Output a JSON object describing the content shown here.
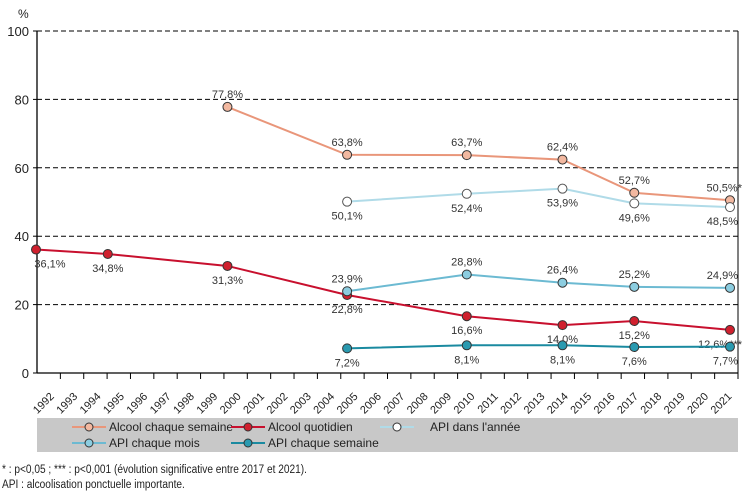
{
  "chart_data": {
    "type": "line",
    "ylabel": "%",
    "ylim": [
      0,
      100
    ],
    "yticks": [
      0,
      20,
      40,
      60,
      80,
      100
    ],
    "grid": "horizontal dashed",
    "x": [
      1992,
      1993,
      1994,
      1995,
      1996,
      1997,
      1998,
      1999,
      2000,
      2001,
      2002,
      2003,
      2004,
      2005,
      2006,
      2007,
      2008,
      2009,
      2010,
      2011,
      2012,
      2013,
      2014,
      2015,
      2016,
      2017,
      2018,
      2019,
      2020,
      2021
    ],
    "legend_position": "bottom",
    "series": [
      {
        "name": "Alcool chaque semaine",
        "color": "#e9967a",
        "marker_fill": "#f2b8a0",
        "points": [
          {
            "x": 2000,
            "y": 77.8,
            "label": "77,8%"
          },
          {
            "x": 2005,
            "y": 63.8,
            "label": "63,8%"
          },
          {
            "x": 2010,
            "y": 63.7,
            "label": "63,7%"
          },
          {
            "x": 2014,
            "y": 62.4,
            "label": "62,4%"
          },
          {
            "x": 2017,
            "y": 52.7,
            "label": "52,7%"
          },
          {
            "x": 2021,
            "y": 50.5,
            "label": "50,5%*"
          }
        ]
      },
      {
        "name": "Alcool quotidien",
        "color": "#c8102e",
        "marker_fill": "#d0202e",
        "points": [
          {
            "x": 1992,
            "y": 36.1,
            "label": "36,1%"
          },
          {
            "x": 1995,
            "y": 34.8,
            "label": "34,8%"
          },
          {
            "x": 2000,
            "y": 31.3,
            "label": "31,3%"
          },
          {
            "x": 2005,
            "y": 22.8,
            "label": "22,8%"
          },
          {
            "x": 2010,
            "y": 16.6,
            "label": "16,6%"
          },
          {
            "x": 2014,
            "y": 14.0,
            "label": "14,0%"
          },
          {
            "x": 2017,
            "y": 15.2,
            "label": "15,2%"
          },
          {
            "x": 2021,
            "y": 12.6,
            "label": "12,6%***"
          }
        ]
      },
      {
        "name": "API dans l'année",
        "color": "#b0dbe8",
        "marker_fill": "#ffffff",
        "points": [
          {
            "x": 2005,
            "y": 50.1,
            "label": "50,1%"
          },
          {
            "x": 2010,
            "y": 52.4,
            "label": "52,4%"
          },
          {
            "x": 2014,
            "y": 53.9,
            "label": "53,9%"
          },
          {
            "x": 2017,
            "y": 49.6,
            "label": "49,6%"
          },
          {
            "x": 2021,
            "y": 48.5,
            "label": "48,5%"
          }
        ]
      },
      {
        "name": "API chaque mois",
        "color": "#6cbad2",
        "marker_fill": "#8ccde0",
        "points": [
          {
            "x": 2005,
            "y": 23.9,
            "label": "23,9%"
          },
          {
            "x": 2010,
            "y": 28.8,
            "label": "28,8%"
          },
          {
            "x": 2014,
            "y": 26.4,
            "label": "26,4%"
          },
          {
            "x": 2017,
            "y": 25.2,
            "label": "25,2%"
          },
          {
            "x": 2021,
            "y": 24.9,
            "label": "24,9%"
          }
        ]
      },
      {
        "name": "API chaque semaine",
        "color": "#1a8aa0",
        "marker_fill": "#2a9ab0",
        "points": [
          {
            "x": 2005,
            "y": 7.2,
            "label": "7,2%"
          },
          {
            "x": 2010,
            "y": 8.1,
            "label": "8,1%"
          },
          {
            "x": 2014,
            "y": 8.1,
            "label": "8,1%"
          },
          {
            "x": 2017,
            "y": 7.6,
            "label": "7,6%"
          },
          {
            "x": 2021,
            "y": 7.7,
            "label": "7,7%"
          }
        ]
      }
    ]
  },
  "notes": {
    "significance": "* : p<0,05 ; *** : p<0,001 (évolution significative entre 2017 et 2021).",
    "api": "API : alcoolisation ponctuelle importante."
  }
}
